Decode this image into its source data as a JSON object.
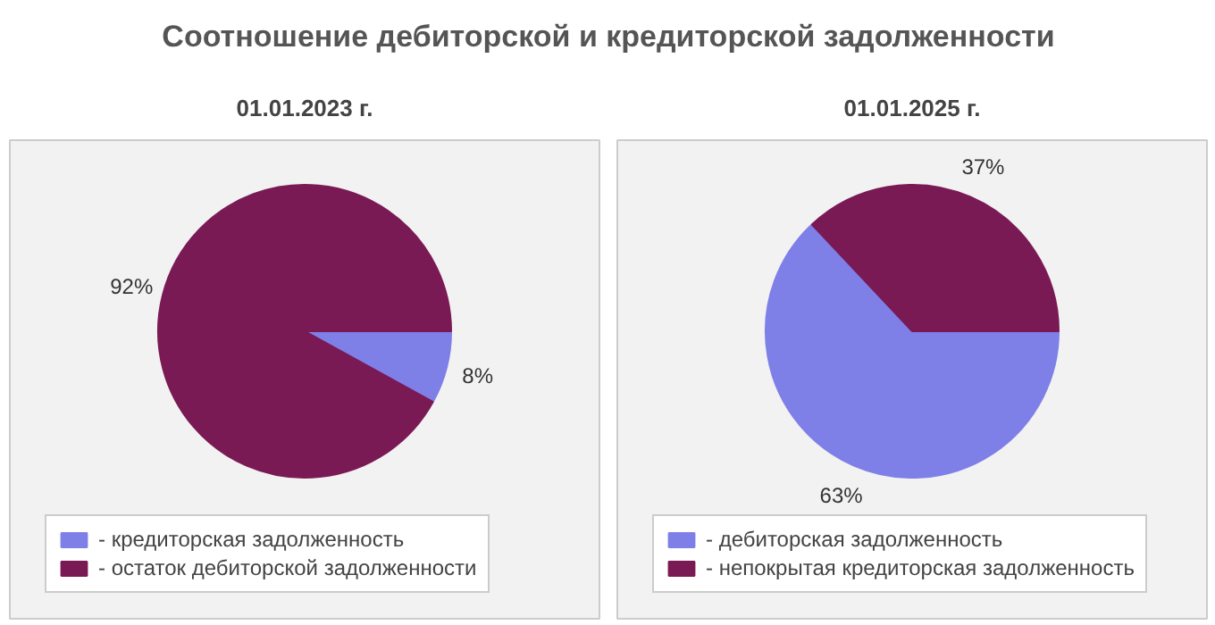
{
  "chart_data": [
    {
      "type": "pie",
      "title": "Соотношение дебиторской и кредиторской задолженности",
      "subtitle": "01.01.2023 г.",
      "categories": [
        "- кредиторская задолженность",
        "- остаток дебиторской задолженности"
      ],
      "values": [
        8,
        92
      ],
      "colors": [
        "#7f7fe8",
        "#7a1a55"
      ],
      "value_labels": [
        "8%",
        "92%"
      ],
      "legend": "bottom"
    },
    {
      "type": "pie",
      "subtitle": "01.01.2025 г.",
      "categories": [
        "- дебиторская задолженность",
        "- непокрытая кредиторская задолженность"
      ],
      "values": [
        63,
        37
      ],
      "colors": [
        "#7f7fe8",
        "#7a1a55"
      ],
      "value_labels": [
        "63%",
        "37%"
      ],
      "legend": "bottom"
    }
  ]
}
